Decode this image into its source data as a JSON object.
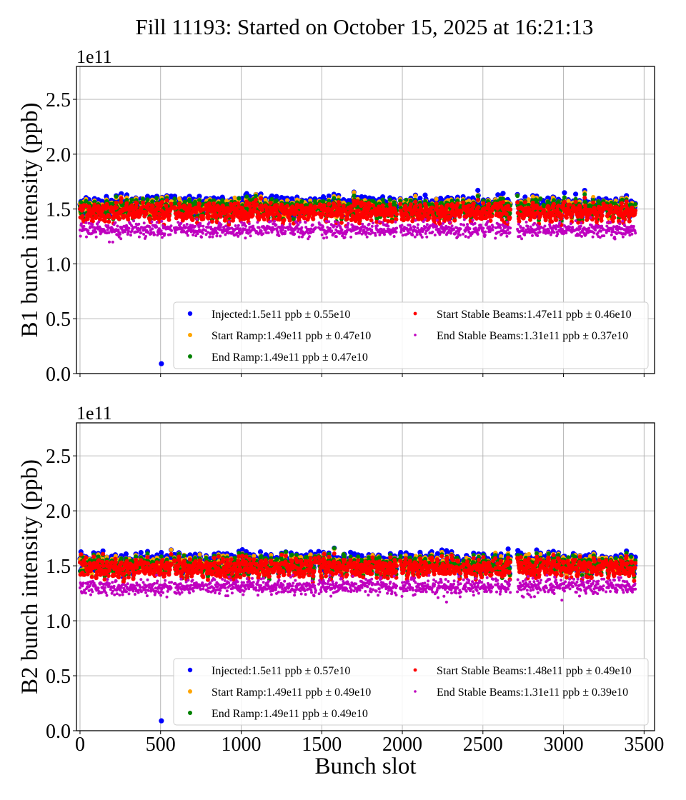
{
  "figure_title": "Fill 11193: Started on October 15, 2025 at 16:21:13",
  "chart_data": [
    {
      "type": "scatter",
      "ylabel": "B1 bunch intensity (ppb)",
      "xlabel": "",
      "y_offset_label": "1e11",
      "xlim": [
        -22,
        3565
      ],
      "ylim": [
        0,
        2.8
      ],
      "y_ticks": [
        0.0,
        0.5,
        1.0,
        1.5,
        2.0,
        2.5
      ],
      "y_tick_labels": [
        "0.0",
        "0.5",
        "1.0",
        "1.5",
        "2.0",
        "2.5"
      ],
      "x_ticks": [
        0,
        500,
        1000,
        1500,
        2000,
        2500,
        3000,
        3500
      ],
      "x_tick_labels": [],
      "grid": true,
      "legend_placement": "lower-right",
      "series": [
        {
          "name": "Injected",
          "legend": "Injected:1.5e11 ppb ± 0.55e10",
          "color": "#0000ff",
          "mean": 1.5,
          "spread": 0.055,
          "offset": 0.06
        },
        {
          "name": "Start Ramp",
          "legend": "Start Ramp:1.49e11 ppb ± 0.47e10",
          "color": "#ffa500",
          "mean": 1.49,
          "spread": 0.047,
          "offset": 0.04
        },
        {
          "name": "End Ramp",
          "legend": "End Ramp:1.49e11 ppb ± 0.47e10",
          "color": "#008000",
          "mean": 1.49,
          "spread": 0.047,
          "offset": 0.02
        },
        {
          "name": "Start Stable Beams",
          "legend": "Start Stable Beams:1.47e11 ppb ± 0.46e10",
          "color": "#ff0000",
          "mean": 1.47,
          "spread": 0.046,
          "offset": 0.0
        },
        {
          "name": "End Stable Beams",
          "legend": "End Stable Beams:1.31e11 ppb ± 0.37e10",
          "color": "#bf00bf",
          "mean": 1.31,
          "spread": 0.037,
          "offset": 0.0
        }
      ],
      "outliers": [
        {
          "series": "Injected",
          "x": 505,
          "y": 0.09
        }
      ]
    },
    {
      "type": "scatter",
      "ylabel": "B2 bunch intensity (ppb)",
      "xlabel": "Bunch slot",
      "y_offset_label": "1e11",
      "xlim": [
        -22,
        3565
      ],
      "ylim": [
        0,
        2.8
      ],
      "y_ticks": [
        0.0,
        0.5,
        1.0,
        1.5,
        2.0,
        2.5
      ],
      "y_tick_labels": [
        "0.0",
        "0.5",
        "1.0",
        "1.5",
        "2.0",
        "2.5"
      ],
      "x_ticks": [
        0,
        500,
        1000,
        1500,
        2000,
        2500,
        3000,
        3500
      ],
      "x_tick_labels": [
        "0",
        "500",
        "1000",
        "1500",
        "2000",
        "2500",
        "3000",
        "3500"
      ],
      "grid": true,
      "legend_placement": "lower-right",
      "series": [
        {
          "name": "Injected",
          "legend": "Injected:1.5e11 ppb ± 0.57e10",
          "color": "#0000ff",
          "mean": 1.5,
          "spread": 0.057,
          "offset": 0.06
        },
        {
          "name": "Start Ramp",
          "legend": "Start Ramp:1.49e11 ppb ± 0.49e10",
          "color": "#ffa500",
          "mean": 1.49,
          "spread": 0.049,
          "offset": 0.04
        },
        {
          "name": "End Ramp",
          "legend": "End Ramp:1.49e11 ppb ± 0.49e10",
          "color": "#008000",
          "mean": 1.49,
          "spread": 0.049,
          "offset": 0.02
        },
        {
          "name": "Start Stable Beams",
          "legend": "Start Stable Beams:1.48e11 ppb ± 0.49e10",
          "color": "#ff0000",
          "mean": 1.48,
          "spread": 0.049,
          "offset": 0.0
        },
        {
          "name": "End Stable Beams",
          "legend": "End Stable Beams:1.31e11 ppb ± 0.39e10",
          "color": "#bf00bf",
          "mean": 1.31,
          "spread": 0.039,
          "offset": 0.0
        }
      ],
      "outliers": [
        {
          "series": "Injected",
          "x": 505,
          "y": 0.09
        }
      ]
    }
  ],
  "bunch_trains": [
    [
      0,
      27
    ],
    [
      35,
      182
    ],
    [
      190,
      381
    ],
    [
      390,
      568
    ],
    [
      585,
      767
    ],
    [
      780,
      931
    ],
    [
      936,
      1082
    ],
    [
      1091,
      1277
    ],
    [
      1286,
      1463
    ],
    [
      1481,
      1667
    ],
    [
      1676,
      1818
    ],
    [
      1831,
      1965
    ],
    [
      1987,
      2173
    ],
    [
      2182,
      2364
    ],
    [
      2377,
      2563
    ],
    [
      2577,
      2670
    ],
    [
      2714,
      2860
    ],
    [
      2874,
      3064
    ],
    [
      3073,
      3251
    ],
    [
      3264,
      3446
    ]
  ]
}
